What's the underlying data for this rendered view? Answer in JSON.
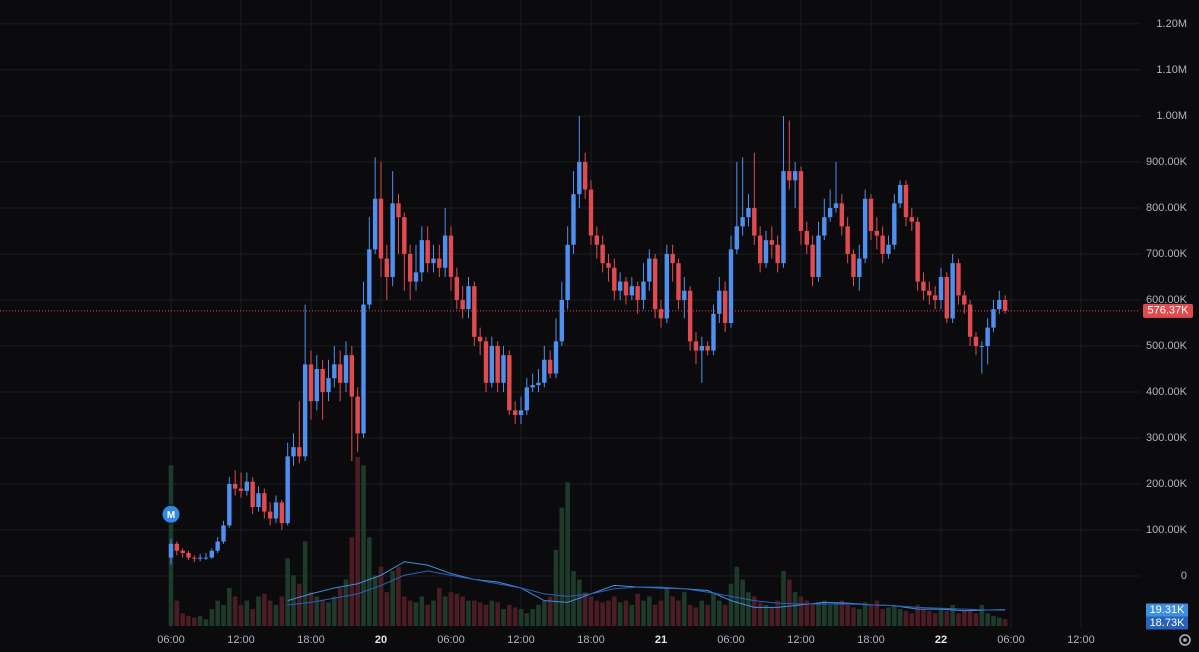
{
  "chart_data": {
    "type": "candlestick",
    "grid": true,
    "colors": {
      "up": "#4f8ff0",
      "down": "#e04b4f",
      "volume_up": "#1e3a2b",
      "volume_down": "#4a1c24"
    },
    "xlim": [
      -8.657,
      89.06
    ],
    "xticks": [
      {
        "value": 6,
        "label": "06:00"
      },
      {
        "value": 12,
        "label": "12:00"
      },
      {
        "value": 18,
        "label": "18:00"
      },
      {
        "value": 24,
        "label": "20"
      },
      {
        "value": 30,
        "label": "06:00"
      },
      {
        "value": 36,
        "label": "12:00"
      },
      {
        "value": 42,
        "label": "18:00"
      },
      {
        "value": 48,
        "label": "21"
      },
      {
        "value": 54,
        "label": "06:00"
      },
      {
        "value": 60,
        "label": "12:00"
      },
      {
        "value": 66,
        "label": "18:00"
      },
      {
        "value": 72,
        "label": "22"
      },
      {
        "value": 78,
        "label": "06:00"
      },
      {
        "value": 84,
        "label": "12:00"
      }
    ],
    "ylim": [
      -113,
      1252
    ],
    "yticks": [
      0,
      {
        "value": 100,
        "label": "100.00K"
      },
      {
        "value": 200,
        "label": "200.00K"
      },
      {
        "value": 300,
        "label": "300.00K"
      },
      {
        "value": 400,
        "label": "400.00K"
      },
      {
        "value": 500,
        "label": "500.00K"
      },
      {
        "value": 600,
        "label": "600.00K"
      },
      {
        "value": 700,
        "label": "700.00K"
      },
      {
        "value": 800,
        "label": "800.00K"
      },
      {
        "value": 900,
        "label": "900.00K"
      },
      {
        "value": 1000,
        "label": "1.00M"
      },
      {
        "value": 1100,
        "label": "1.10M"
      },
      {
        "value": 1200,
        "label": "1.20M"
      }
    ],
    "x": [
      6,
      6.5,
      7,
      7.5,
      8,
      8.5,
      9,
      9.5,
      10,
      10.5,
      11,
      11.5,
      12,
      12.5,
      13,
      13.5,
      14,
      14.5,
      15,
      15.5,
      16,
      16.5,
      17,
      17.5,
      18,
      18.5,
      19,
      19.5,
      20,
      20.5,
      21,
      21.5,
      22,
      22.5,
      23,
      23.5,
      24,
      24.5,
      25,
      25.5,
      26,
      26.5,
      27,
      27.5,
      28,
      28.5,
      29,
      29.5,
      30,
      30.5,
      31,
      31.5,
      32,
      32.5,
      33,
      33.5,
      34,
      34.5,
      35,
      35.5,
      36,
      36.5,
      37,
      37.5,
      38,
      38.5,
      39,
      39.5,
      40,
      40.5,
      41,
      41.5,
      42,
      42.5,
      43,
      43.5,
      44,
      44.5,
      45,
      45.5,
      46,
      46.5,
      47,
      47.5,
      48,
      48.5,
      49,
      49.5,
      50,
      50.5,
      51,
      51.5,
      52,
      52.5,
      53,
      53.5,
      54,
      54.5,
      55,
      55.5,
      56,
      56.5,
      57,
      57.5,
      58,
      58.5,
      59,
      59.5,
      60,
      60.5,
      61,
      61.5,
      62,
      62.5,
      63,
      63.5,
      64,
      64.5,
      65,
      65.5,
      66,
      66.5,
      67,
      67.5,
      68,
      68.5,
      69,
      69.5,
      70,
      70.5,
      71,
      71.5,
      72,
      72.5,
      73,
      73.5,
      74,
      74.5,
      75,
      75.5,
      76,
      76.5,
      77,
      77.5
    ],
    "open": [
      40,
      70,
      55,
      50,
      40,
      38,
      40,
      40,
      55,
      75,
      110,
      200,
      190,
      185,
      205,
      150,
      180,
      140,
      125,
      160,
      115,
      260,
      280,
      260,
      460,
      380,
      450,
      400,
      430,
      460,
      420,
      480,
      390,
      310,
      590,
      710,
      820,
      690,
      650,
      810,
      780,
      700,
      640,
      660,
      730,
      680,
      690,
      670,
      740,
      650,
      600,
      580,
      630,
      520,
      510,
      420,
      500,
      420,
      480,
      360,
      350,
      360,
      410,
      415,
      420,
      470,
      440,
      510,
      600,
      720,
      830,
      900,
      840,
      740,
      720,
      680,
      670,
      620,
      640,
      610,
      630,
      600,
      640,
      690,
      580,
      560,
      700,
      680,
      600,
      620,
      510,
      490,
      500,
      490,
      570,
      620,
      550,
      710,
      760,
      780,
      800,
      740,
      680,
      730,
      720,
      680,
      880,
      860,
      880,
      750,
      720,
      650,
      740,
      780,
      800,
      810,
      760,
      700,
      650,
      690,
      820,
      750,
      740,
      700,
      720,
      810,
      850,
      780,
      770,
      640,
      620,
      610,
      600,
      650,
      560,
      680,
      610,
      590,
      520,
      500,
      500,
      540,
      580,
      600
    ],
    "high": [
      80,
      75,
      60,
      55,
      45,
      48,
      50,
      60,
      85,
      120,
      215,
      230,
      225,
      225,
      215,
      195,
      190,
      160,
      175,
      165,
      290,
      310,
      380,
      590,
      490,
      480,
      470,
      470,
      500,
      490,
      510,
      500,
      410,
      640,
      780,
      910,
      900,
      720,
      880,
      830,
      790,
      720,
      720,
      760,
      760,
      720,
      720,
      800,
      760,
      670,
      630,
      650,
      640,
      540,
      520,
      520,
      510,
      500,
      490,
      380,
      390,
      430,
      440,
      450,
      500,
      490,
      560,
      640,
      760,
      880,
      1000,
      920,
      860,
      760,
      740,
      700,
      690,
      660,
      650,
      650,
      640,
      680,
      710,
      700,
      600,
      720,
      720,
      690,
      650,
      630,
      530,
      520,
      510,
      590,
      650,
      640,
      740,
      900,
      910,
      830,
      920,
      760,
      750,
      760,
      740,
      1000,
      990,
      900,
      890,
      770,
      740,
      770,
      820,
      840,
      900,
      830,
      780,
      710,
      720,
      840,
      830,
      780,
      760,
      740,
      830,
      860,
      860,
      800,
      780,
      660,
      640,
      630,
      670,
      660,
      700,
      690,
      620,
      600,
      530,
      510,
      560,
      600,
      620,
      610
    ],
    "low": [
      25,
      45,
      40,
      35,
      30,
      32,
      35,
      38,
      50,
      70,
      105,
      175,
      170,
      175,
      135,
      140,
      125,
      110,
      115,
      100,
      110,
      240,
      245,
      250,
      340,
      360,
      340,
      380,
      410,
      380,
      400,
      250,
      270,
      300,
      580,
      700,
      650,
      600,
      630,
      700,
      620,
      600,
      620,
      640,
      660,
      660,
      650,
      650,
      620,
      580,
      560,
      560,
      500,
      480,
      400,
      410,
      400,
      400,
      350,
      330,
      330,
      350,
      400,
      400,
      410,
      430,
      430,
      500,
      580,
      700,
      800,
      820,
      720,
      690,
      660,
      640,
      600,
      600,
      590,
      600,
      570,
      580,
      620,
      560,
      540,
      550,
      640,
      580,
      560,
      490,
      460,
      420,
      480,
      480,
      550,
      530,
      540,
      700,
      740,
      760,
      720,
      660,
      670,
      690,
      660,
      670,
      840,
      800,
      720,
      700,
      630,
      640,
      730,
      770,
      790,
      740,
      680,
      630,
      620,
      680,
      730,
      710,
      680,
      690,
      710,
      800,
      760,
      750,
      620,
      600,
      590,
      580,
      580,
      550,
      550,
      590,
      570,
      500,
      480,
      440,
      460,
      530,
      570,
      570
    ],
    "close": [
      70,
      55,
      50,
      40,
      38,
      40,
      40,
      55,
      75,
      110,
      200,
      190,
      185,
      205,
      150,
      180,
      140,
      125,
      160,
      115,
      260,
      280,
      260,
      460,
      380,
      450,
      400,
      430,
      460,
      420,
      480,
      390,
      310,
      590,
      710,
      820,
      690,
      650,
      810,
      780,
      700,
      640,
      660,
      730,
      680,
      690,
      670,
      740,
      650,
      600,
      580,
      630,
      520,
      510,
      420,
      500,
      420,
      480,
      360,
      350,
      360,
      410,
      415,
      420,
      470,
      440,
      510,
      600,
      720,
      830,
      900,
      840,
      740,
      720,
      680,
      670,
      620,
      640,
      610,
      630,
      600,
      640,
      690,
      580,
      560,
      700,
      680,
      600,
      620,
      510,
      490,
      500,
      490,
      570,
      620,
      550,
      710,
      760,
      780,
      800,
      740,
      680,
      730,
      720,
      680,
      880,
      860,
      880,
      750,
      720,
      650,
      740,
      780,
      800,
      810,
      760,
      700,
      650,
      690,
      820,
      750,
      740,
      700,
      720,
      810,
      850,
      780,
      770,
      640,
      620,
      610,
      600,
      650,
      560,
      680,
      610,
      590,
      520,
      500,
      500,
      540,
      580,
      600,
      576.37
    ],
    "close_label": "576.37K",
    "volume": {
      "ylim": [
        0,
        220
      ],
      "values": [
        190,
        30,
        15,
        12,
        10,
        12,
        8,
        20,
        30,
        25,
        45,
        35,
        25,
        30,
        20,
        35,
        38,
        30,
        25,
        35,
        80,
        60,
        50,
        100,
        40,
        35,
        30,
        28,
        35,
        45,
        55,
        105,
        200,
        190,
        105,
        60,
        70,
        40,
        65,
        70,
        35,
        30,
        28,
        35,
        25,
        30,
        45,
        35,
        40,
        38,
        35,
        30,
        30,
        28,
        25,
        30,
        28,
        20,
        25,
        22,
        20,
        15,
        20,
        25,
        30,
        35,
        90,
        140,
        170,
        65,
        55,
        40,
        35,
        30,
        28,
        30,
        35,
        28,
        30,
        25,
        38,
        30,
        35,
        25,
        30,
        45,
        35,
        30,
        40,
        25,
        22,
        30,
        25,
        40,
        30,
        25,
        50,
        70,
        55,
        40,
        35,
        28,
        25,
        22,
        30,
        65,
        55,
        40,
        35,
        30,
        25,
        28,
        30,
        25,
        28,
        30,
        25,
        22,
        20,
        28,
        25,
        30,
        20,
        22,
        25,
        20,
        18,
        15,
        25,
        20,
        18,
        15,
        20,
        18,
        25,
        15,
        18,
        20,
        15,
        25,
        15,
        12,
        10,
        8
      ]
    },
    "volume_ma": [
      {
        "color": "#3d8fe0",
        "x": [
          16,
          18,
          20,
          22,
          24,
          26,
          28,
          30,
          32,
          34,
          36,
          38,
          40,
          42,
          44,
          46,
          48,
          50,
          52,
          54,
          56,
          58,
          60,
          62,
          64,
          66,
          68,
          70,
          72,
          74,
          76,
          77.5
        ],
        "values": [
          30,
          38,
          45,
          50,
          60,
          76,
          72,
          62,
          55,
          52,
          45,
          30,
          28,
          38,
          48,
          46,
          45,
          44,
          42,
          30,
          22,
          22,
          25,
          28,
          27,
          25,
          24,
          20,
          20,
          18,
          19,
          19.31
        ],
        "last_label": "19.31K"
      },
      {
        "color": "#2a62b8",
        "x": [
          16,
          18,
          20,
          22,
          24,
          26,
          28,
          30,
          32,
          34,
          36,
          38,
          40,
          42,
          44,
          46,
          48,
          50,
          52,
          54,
          56,
          58,
          60,
          62,
          64,
          66,
          68,
          70,
          72,
          74,
          76,
          77.5
        ],
        "values": [
          25,
          28,
          33,
          38,
          48,
          60,
          65,
          60,
          55,
          50,
          45,
          38,
          35,
          38,
          44,
          46,
          46,
          44,
          40,
          35,
          30,
          27,
          26,
          26,
          26,
          25,
          24,
          22,
          21,
          20,
          19,
          18.73
        ],
        "last_label": "18.73K"
      }
    ],
    "markers": [
      {
        "x": 6,
        "label": "M"
      }
    ]
  }
}
